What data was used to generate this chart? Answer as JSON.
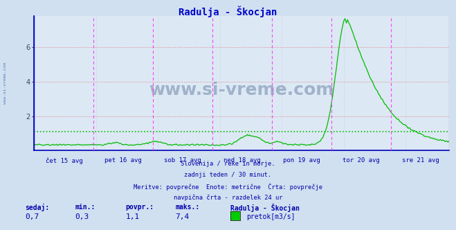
{
  "title": "Radulja - Škocjan",
  "title_color": "#0000cc",
  "bg_color": "#d0e0f0",
  "plot_bg_color": "#dce8f4",
  "line_color": "#00bb00",
  "avg_line_color": "#00bb00",
  "avg_value": 1.1,
  "ylim": [
    0,
    7.8
  ],
  "yticks": [
    2,
    4,
    6
  ],
  "ylabel_color": "#404060",
  "grid_color": "#e08080",
  "grid_style": "dotted",
  "vline_color": "#ff44ff",
  "vline_style": "--",
  "left_vline_color": "#0000cc",
  "xaxis_color": "#0000aa",
  "watermark": "www.si-vreme.com",
  "watermark_color": "#1a3a6a",
  "watermark_alpha": 0.3,
  "subtitle_lines": [
    "Slovenija / reke in morje.",
    "zadnji teden / 30 minut.",
    "Meritve: povprečne  Enote: metrične  Črta: povprečje",
    "navpična črta - razdelek 24 ur"
  ],
  "subtitle_color": "#0000aa",
  "stats_labels": [
    "sedaj:",
    "min.:",
    "povpr.:",
    "maks.:"
  ],
  "stats_values": [
    "0,7",
    "0,3",
    "1,1",
    "7,4"
  ],
  "legend_name": "Radulja - Škocjan",
  "legend_unit": "pretok[m3/s]",
  "legend_color": "#00cc00",
  "x_day_labels": [
    "čet 15 avg",
    "pet 16 avg",
    "sob 17 avg",
    "ned 18 avg",
    "pon 19 avg",
    "tor 20 avg",
    "sre 21 avg"
  ],
  "n_points": 336,
  "peak_index": 252,
  "peak_value": 7.4,
  "baseline": 0.3
}
